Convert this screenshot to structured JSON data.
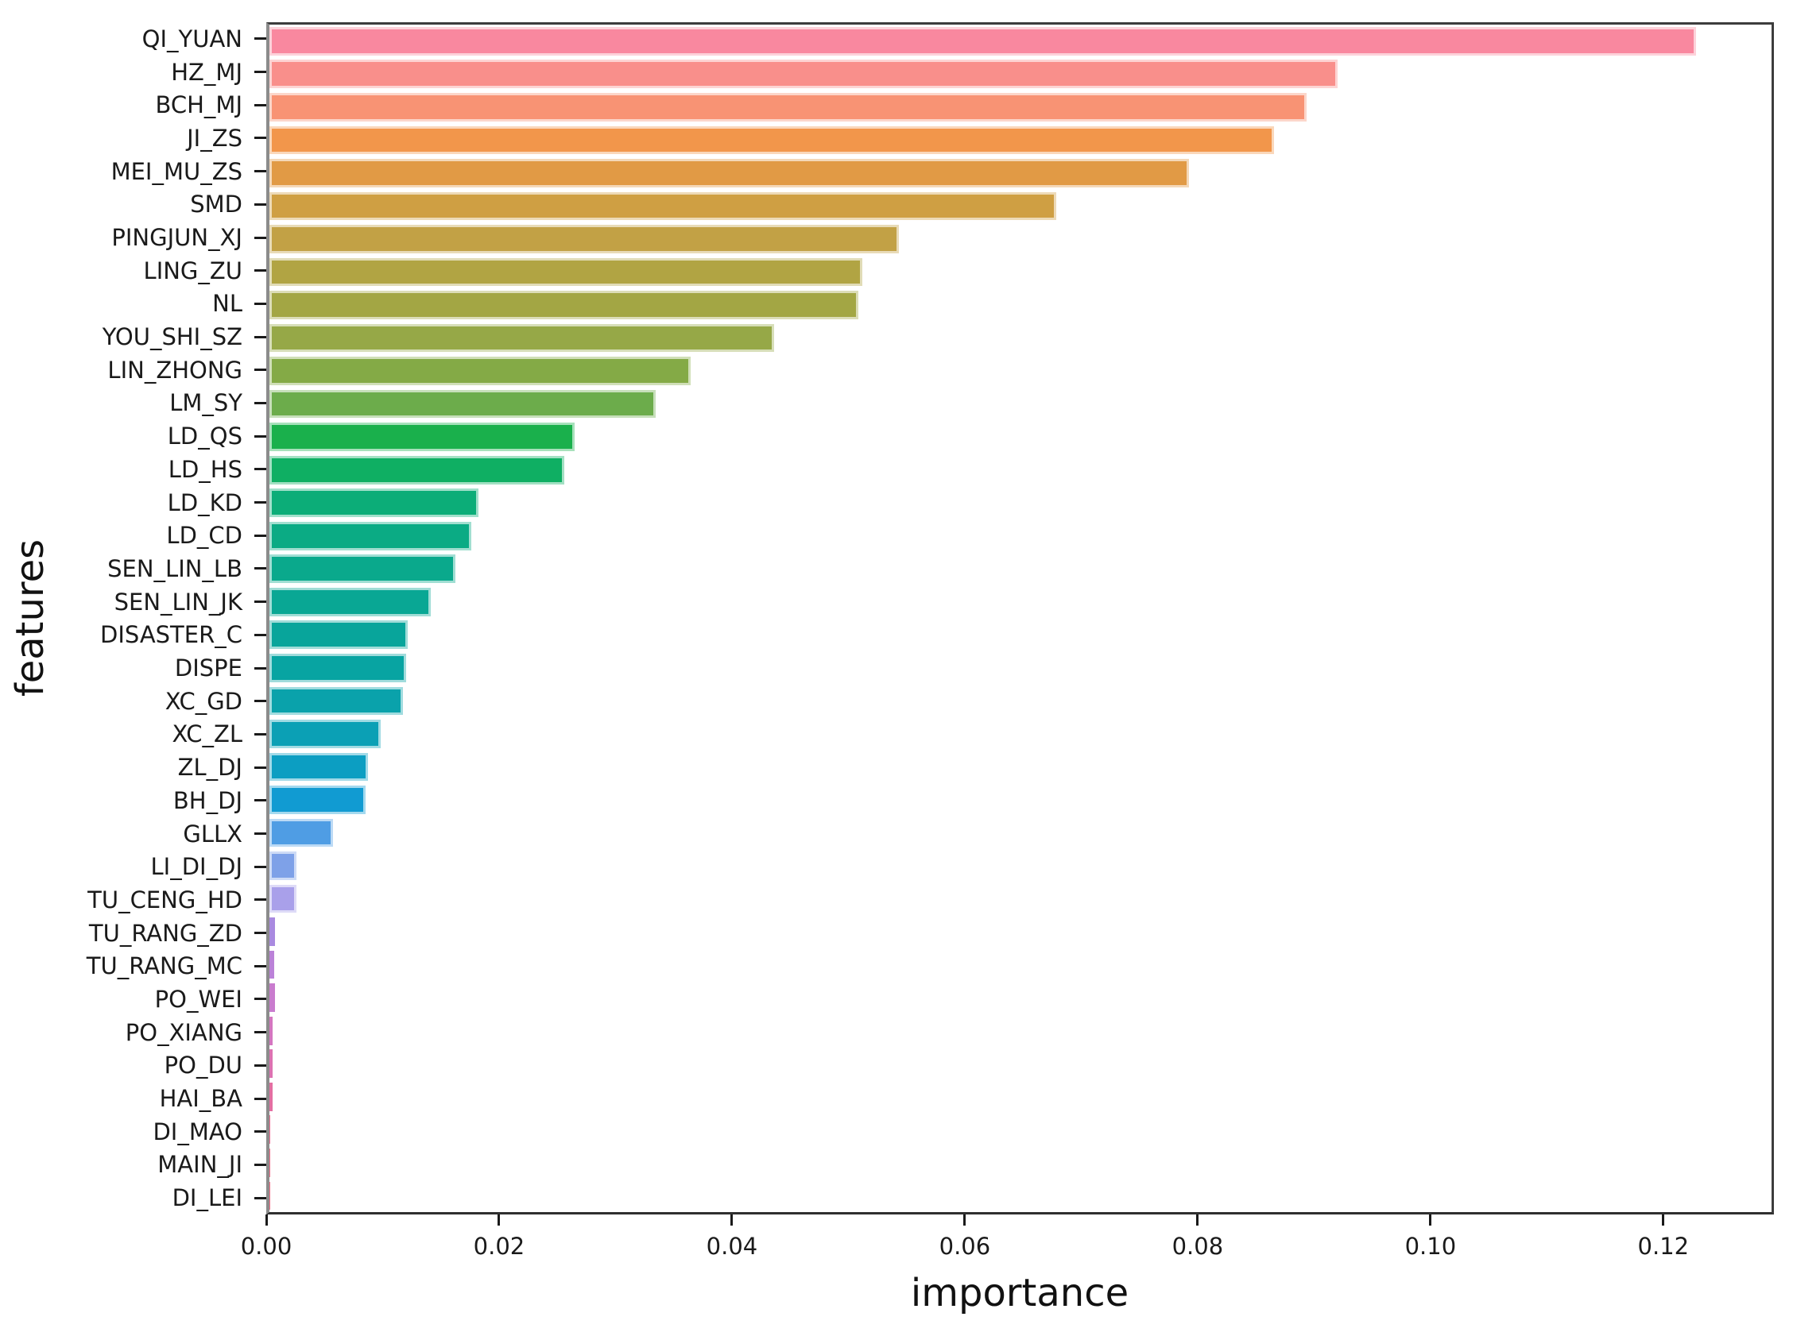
{
  "figure": {
    "background": "#ffffff",
    "text_color": "#1a1a1a",
    "spine_color_dark": "#3c3c3c",
    "spine_color_left": "#8c8c8c"
  },
  "chart_data": {
    "type": "bar",
    "orientation": "horizontal",
    "title": "",
    "xlabel": "importance",
    "ylabel": "features",
    "grid": false,
    "legend": null,
    "xlim": [
      0,
      0.1295
    ],
    "x_ticks": [
      {
        "value": 0.0,
        "label": "0.00"
      },
      {
        "value": 0.02,
        "label": "0.02"
      },
      {
        "value": 0.04,
        "label": "0.04"
      },
      {
        "value": 0.06,
        "label": "0.06"
      },
      {
        "value": 0.08,
        "label": "0.08"
      },
      {
        "value": 0.1,
        "label": "0.10"
      },
      {
        "value": 0.12,
        "label": "0.12"
      }
    ],
    "categories": [
      "QI_YUAN",
      "HZ_MJ",
      "BCH_MJ",
      "JI_ZS",
      "MEI_MU_ZS",
      "SMD",
      "PINGJUN_XJ",
      "LING_ZU",
      "NL",
      "YOU_SHI_SZ",
      "LIN_ZHONG",
      "LM_SY",
      "LD_QS",
      "LD_HS",
      "LD_KD",
      "LD_CD",
      "SEN_LIN_LB",
      "SEN_LIN_JK",
      "DISASTER_C",
      "DISPE",
      "XC_GD",
      "XC_ZL",
      "ZL_DJ",
      "BH_DJ",
      "GLLX",
      "LI_DI_DJ",
      "TU_CENG_HD",
      "TU_RANG_ZD",
      "TU_RANG_MC",
      "PO_WEI",
      "PO_XIANG",
      "PO_DU",
      "HAI_BA",
      "DI_MAO",
      "MAIN_JI",
      "DI_LEI"
    ],
    "values": [
      0.123,
      0.0921,
      0.0894,
      0.0866,
      0.0793,
      0.0678,
      0.0543,
      0.0511,
      0.0508,
      0.0435,
      0.0363,
      0.0333,
      0.0263,
      0.0254,
      0.018,
      0.0174,
      0.016,
      0.0139,
      0.0119,
      0.0118,
      0.0115,
      0.0096,
      0.0085,
      0.0083,
      0.0055,
      0.0023,
      0.0023,
      0.0005,
      0.0004,
      0.0005,
      0.0003,
      0.0003,
      0.0003,
      0.0001,
      5e-05,
      3e-05
    ],
    "bar_colors": [
      "#f9889f",
      "#f98f8b",
      "#f89374",
      "#f2964b",
      "#e19a45",
      "#cf9f43",
      "#c2a145",
      "#b1a443",
      "#a3a644",
      "#96a847",
      "#84aa46",
      "#6cac4b",
      "#1ab04c",
      "#0faf63",
      "#0cad78",
      "#0bab84",
      "#0aa98c",
      "#09a794",
      "#08a59b",
      "#08a4a2",
      "#0aa2ab",
      "#0ba0b5",
      "#0c9ec2",
      "#119bd2",
      "#4f9de4",
      "#7ea1e8",
      "#a9a0ea",
      "#a98ae0",
      "#bb82d8",
      "#c97cce",
      "#d476c0",
      "#dd72b2",
      "#e36fa2",
      "#ef6f94",
      "#f4708b",
      "#f67088"
    ]
  }
}
